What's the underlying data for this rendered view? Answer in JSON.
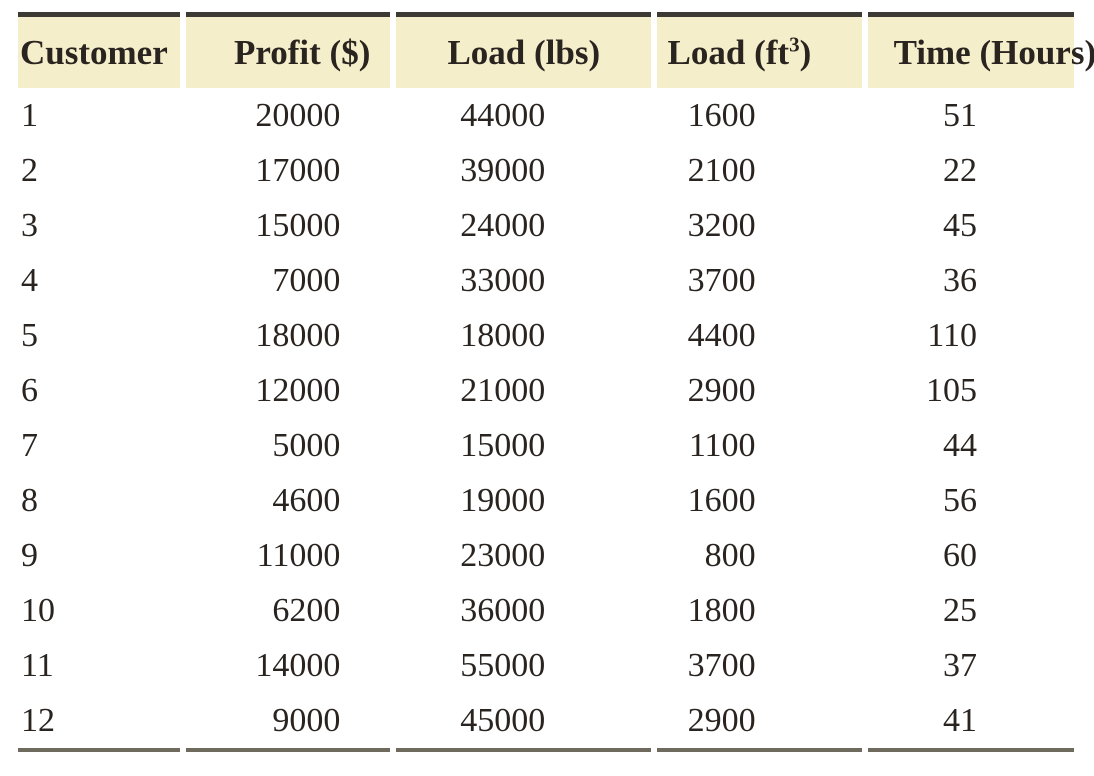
{
  "table": {
    "title": "customer-load-profit-table",
    "column_keys": [
      "customer",
      "profit",
      "load_lbs",
      "load_ft3",
      "time"
    ],
    "headers": {
      "customer": "Customer",
      "profit": "Profit ($)",
      "load_lbs": "Load (lbs)",
      "load_ft3_prefix": "Load (ft",
      "load_ft3_sup": "3",
      "load_ft3_suffix": ")",
      "time": "Time (Hours)"
    },
    "rows": [
      [
        "1",
        "20000",
        "44000",
        "1600",
        "51"
      ],
      [
        "2",
        "17000",
        "39000",
        "2100",
        "22"
      ],
      [
        "3",
        "15000",
        "24000",
        "3200",
        "45"
      ],
      [
        "4",
        "7000",
        "33000",
        "3700",
        "36"
      ],
      [
        "5",
        "18000",
        "18000",
        "4400",
        "110"
      ],
      [
        "6",
        "12000",
        "21000",
        "2900",
        "105"
      ],
      [
        "7",
        "5000",
        "15000",
        "1100",
        "44"
      ],
      [
        "8",
        "4600",
        "19000",
        "1600",
        "56"
      ],
      [
        "9",
        "11000",
        "23000",
        "800",
        "60"
      ],
      [
        "10",
        "6200",
        "36000",
        "1800",
        "25"
      ],
      [
        "11",
        "14000",
        "55000",
        "3700",
        "37"
      ],
      [
        "12",
        "9000",
        "45000",
        "2900",
        "41"
      ]
    ]
  },
  "colors": {
    "header_bg": "#f5eeca",
    "text": "#2a2420",
    "top_border": "#3c3a32",
    "bottom_border": "#6e6a5e"
  }
}
